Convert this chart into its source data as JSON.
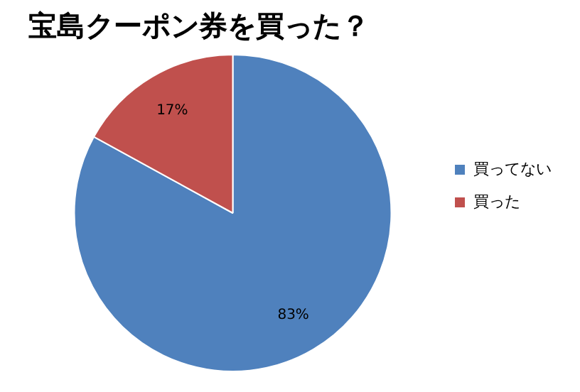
{
  "chart_data": {
    "type": "pie",
    "title": "宝島クーポン券を買った？",
    "categories": [
      "買ってない",
      "買った"
    ],
    "values": [
      83,
      17
    ],
    "colors": [
      "#4f81bd",
      "#c0504d"
    ],
    "value_labels": [
      "83%",
      "17%"
    ],
    "legend": "right"
  }
}
